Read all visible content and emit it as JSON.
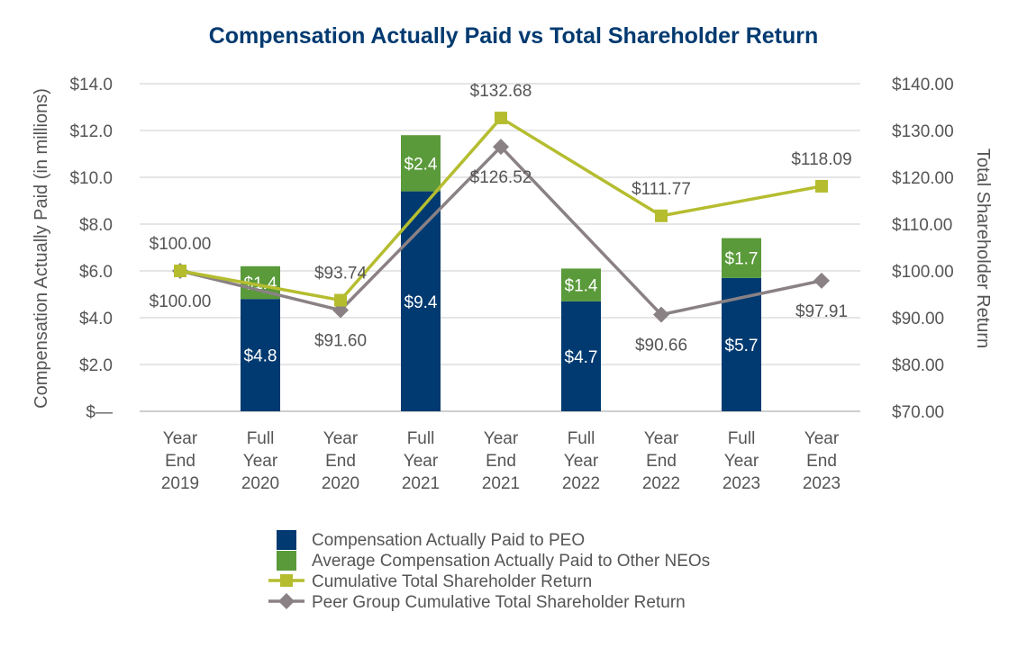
{
  "chart_data": {
    "type": "bar",
    "title": "Compensation Actually Paid vs Total Shareholder Return",
    "ylabel": "Compensation Actually Paid (in millions)",
    "y2label": "Total Shareholder Return",
    "ylim": [
      0,
      14
    ],
    "y2lim": [
      70,
      140
    ],
    "y_ticks": [
      "$—",
      "$2.0",
      "$4.0",
      "$6.0",
      "$8.0",
      "$10.0",
      "$12.0",
      "$14.0"
    ],
    "y2_ticks": [
      "$70.00",
      "$80.00",
      "$90.00",
      "$100.00",
      "$110.00",
      "$120.00",
      "$130.00",
      "$140.00"
    ],
    "categories": [
      [
        "Year",
        "End",
        "2019"
      ],
      [
        "Full",
        "Year",
        "2020"
      ],
      [
        "Year",
        "End",
        "2020"
      ],
      [
        "Full",
        "Year",
        "2021"
      ],
      [
        "Year",
        "End",
        "2021"
      ],
      [
        "Full",
        "Year",
        "2022"
      ],
      [
        "Year",
        "End",
        "2022"
      ],
      [
        "Full",
        "Year",
        "2023"
      ],
      [
        "Year",
        "End",
        "2023"
      ]
    ],
    "bar_series": [
      {
        "name": "Compensation Actually Paid to PEO",
        "color": "#003a70",
        "values": [
          null,
          4.8,
          null,
          9.4,
          null,
          4.7,
          null,
          5.7,
          null
        ],
        "labels": [
          null,
          "$4.8",
          null,
          "$9.4",
          null,
          "$4.7",
          null,
          "$5.7",
          null
        ]
      },
      {
        "name": "Average Compensation Actually Paid to Other NEOs",
        "color": "#5a9a3a",
        "values": [
          null,
          1.4,
          null,
          2.4,
          null,
          1.4,
          null,
          1.7,
          null
        ],
        "labels": [
          null,
          "$1.4",
          null,
          "$2.4",
          null,
          "$1.4",
          null,
          "$1.7",
          null
        ]
      }
    ],
    "line_series": [
      {
        "name": "Cumulative Total Shareholder Return",
        "color": "#b5bd2f",
        "marker": "square",
        "axis": "right",
        "points": [
          [
            0,
            100.0
          ],
          [
            1,
            96.9
          ],
          [
            2,
            93.74
          ],
          [
            4,
            132.68
          ],
          [
            6,
            111.77
          ],
          [
            8,
            118.09
          ]
        ],
        "labels": [
          {
            "text": "$100.00",
            "index": 0,
            "pos": "above"
          },
          {
            "text": "$93.74",
            "index": 2,
            "pos": "above"
          },
          {
            "text": "$132.68",
            "index": 4,
            "pos": "above"
          },
          {
            "text": "$111.77",
            "index": 6,
            "pos": "above"
          },
          {
            "text": "$118.09",
            "index": 8,
            "pos": "above"
          }
        ]
      },
      {
        "name": "Peer Group Cumulative Total Shareholder Return",
        "color": "#8a8185",
        "marker": "diamond",
        "axis": "right",
        "points": [
          [
            0,
            100.0
          ],
          [
            2,
            91.6
          ],
          [
            4,
            126.52
          ],
          [
            6,
            90.66
          ],
          [
            8,
            97.91
          ]
        ],
        "labels": [
          {
            "text": "$100.00",
            "index": 0,
            "pos": "below"
          },
          {
            "text": "$91.60",
            "index": 2,
            "pos": "below"
          },
          {
            "text": "$126.52",
            "index": 4,
            "pos": "below"
          },
          {
            "text": "$90.66",
            "index": 6,
            "pos": "below"
          },
          {
            "text": "$97.91",
            "index": 8,
            "pos": "below"
          }
        ]
      }
    ],
    "legend": [
      {
        "label": "Compensation Actually Paid to PEO",
        "kind": "bar",
        "color": "#003a70"
      },
      {
        "label": "Average Compensation Actually Paid to Other NEOs",
        "kind": "bar",
        "color": "#5a9a3a"
      },
      {
        "label": "Cumulative Total Shareholder Return",
        "kind": "line-square",
        "color": "#b5bd2f"
      },
      {
        "label": "Peer Group Cumulative Total Shareholder Return",
        "kind": "line-diamond",
        "color": "#8a8185"
      }
    ],
    "legend_position": "bottom",
    "grid": true,
    "title_color": "#003a70"
  }
}
